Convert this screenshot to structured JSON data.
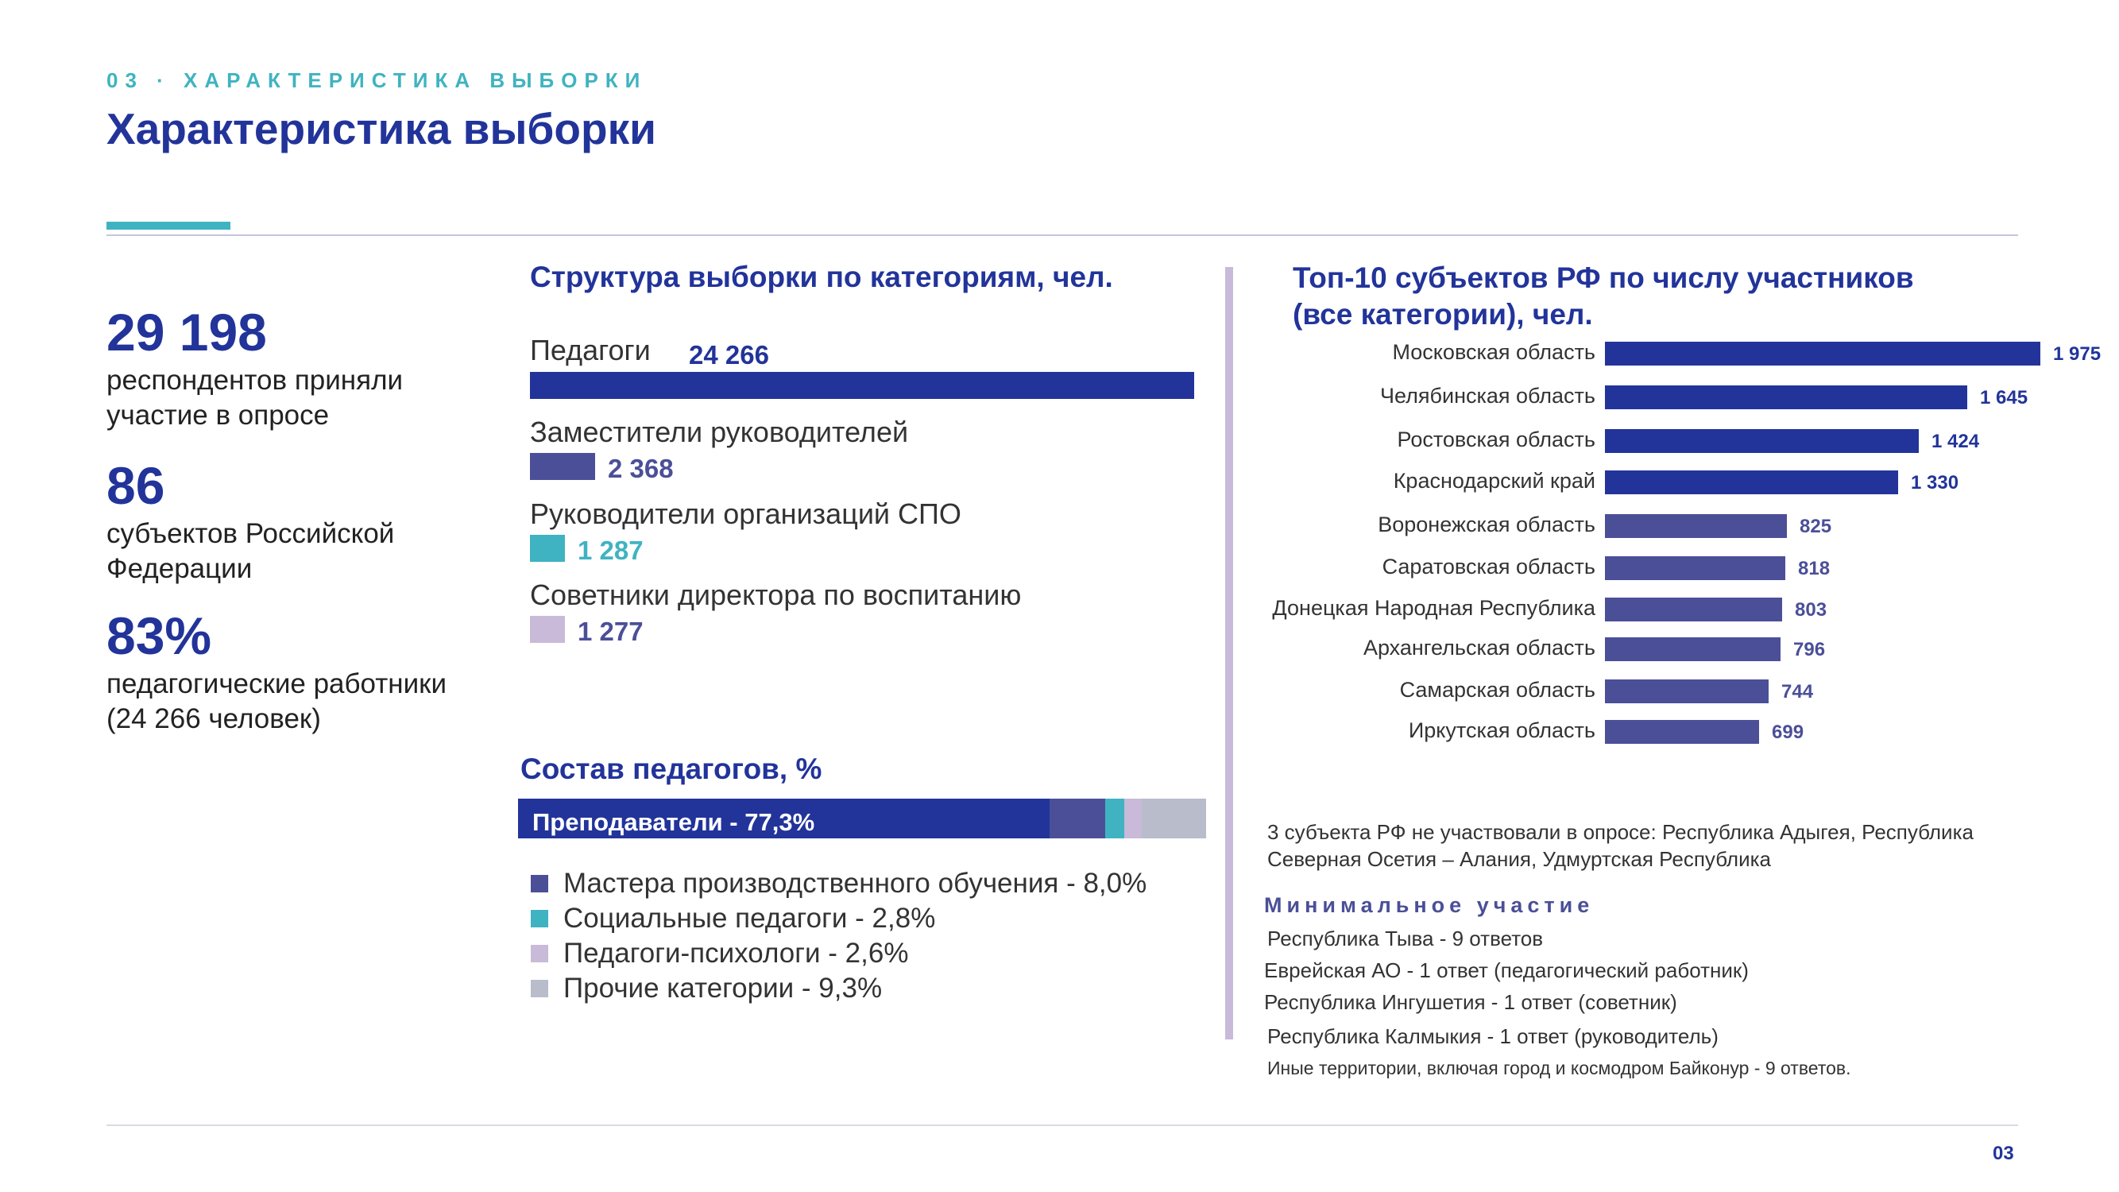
{
  "header": {
    "kicker": "03 · ХАРАКТЕРИСТИКА ВЫБОРКИ",
    "title": "Характеристика выборки"
  },
  "stats": [
    {
      "number": "29 198",
      "desc": "респондентов приняли участие в опросе"
    },
    {
      "number": "86",
      "desc": "субъектов Российской Федерации"
    },
    {
      "number": "83%",
      "desc": "педагогические работники\n (24 266 человек)"
    }
  ],
  "categories_title": "Структура выборки по категориям, чел.",
  "composition_title": "Состав педагогов, %",
  "regions_title": "Топ-10 субъектов РФ по числу участников\n (все категории), чел.",
  "colors": {
    "dark_blue": "#22349a",
    "mid_blue": "#4b4f98",
    "teal": "#3fb3c1",
    "lilac": "#c8bad8",
    "grey": "#b8bccb"
  },
  "chart_data": [
    {
      "type": "bar",
      "orientation": "horizontal",
      "title": "Структура выборки по категориям, чел.",
      "categories": [
        "Педагоги",
        "Заместители руководителей",
        "Руководители организаций СПО",
        "Советники директора по воспитанию"
      ],
      "values": [
        24266,
        2368,
        1287,
        1277
      ],
      "value_labels": [
        "24 266",
        "2 368",
        "1 287",
        "1 277"
      ],
      "colors": [
        "#22349a",
        "#4b4f98",
        "#3fb3c1",
        "#c8bad8"
      ]
    },
    {
      "type": "bar",
      "orientation": "horizontal",
      "stacked": true,
      "title": "Состав педагогов, %",
      "categories": [
        "Преподаватели",
        "Мастера производственного обучения",
        "Социальные педагоги",
        "Педагоги-психологи",
        "Прочие категории"
      ],
      "values": [
        77.3,
        8.0,
        2.8,
        2.6,
        9.3
      ],
      "colors": [
        "#22349a",
        "#4b4f98",
        "#3fb3c1",
        "#c8bad8",
        "#b8bccb"
      ],
      "bar_label": "Преподаватели - 77,3%",
      "legend": [
        "Мастера производственного обучения - 8,0%",
        "Социальные педагоги - 2,8%",
        "Педагоги-психологи - 2,6%",
        "Прочие категории - 9,3%"
      ]
    },
    {
      "type": "bar",
      "orientation": "horizontal",
      "title": "Топ-10 субъектов РФ по числу участников (все категории), чел.",
      "categories": [
        "Московская область",
        "Челябинская область",
        "Ростовская область",
        "Краснодарский край",
        "Воронежская область",
        "Саратовская область",
        "Донецкая Народная Республика",
        "Архангельская область",
        "Самарская область",
        "Иркутская область"
      ],
      "values": [
        1975,
        1645,
        1424,
        1330,
        825,
        818,
        803,
        796,
        744,
        699
      ],
      "value_labels": [
        "1 975",
        "1 645",
        "1 424",
        "1 330",
        "825",
        "818",
        "803",
        "796",
        "744",
        "699"
      ],
      "colors": [
        "#22349a",
        "#22349a",
        "#22349a",
        "#22349a",
        "#4b4f98",
        "#4b4f98",
        "#4b4f98",
        "#4b4f98",
        "#4b4f98",
        "#4b4f98"
      ]
    }
  ],
  "notes": {
    "absent": "3 субъекта РФ не участвовали в опросе: Республика Адыгея, Республика Северная Осетия – Алания, Удмуртская Республика",
    "min_title": "Минимальное участие",
    "min_items": [
      "Республика Тыва - 9 ответов",
      "Еврейская АО - 1 ответ (педагогический работник)",
      "Республика Ингушетия - 1 ответ (советник)",
      "Республика Калмыкия - 1 ответ (руководитель)"
    ],
    "other": "Иные территории, включая город и космодром Байконур - 9 ответов."
  },
  "page_number": "03"
}
